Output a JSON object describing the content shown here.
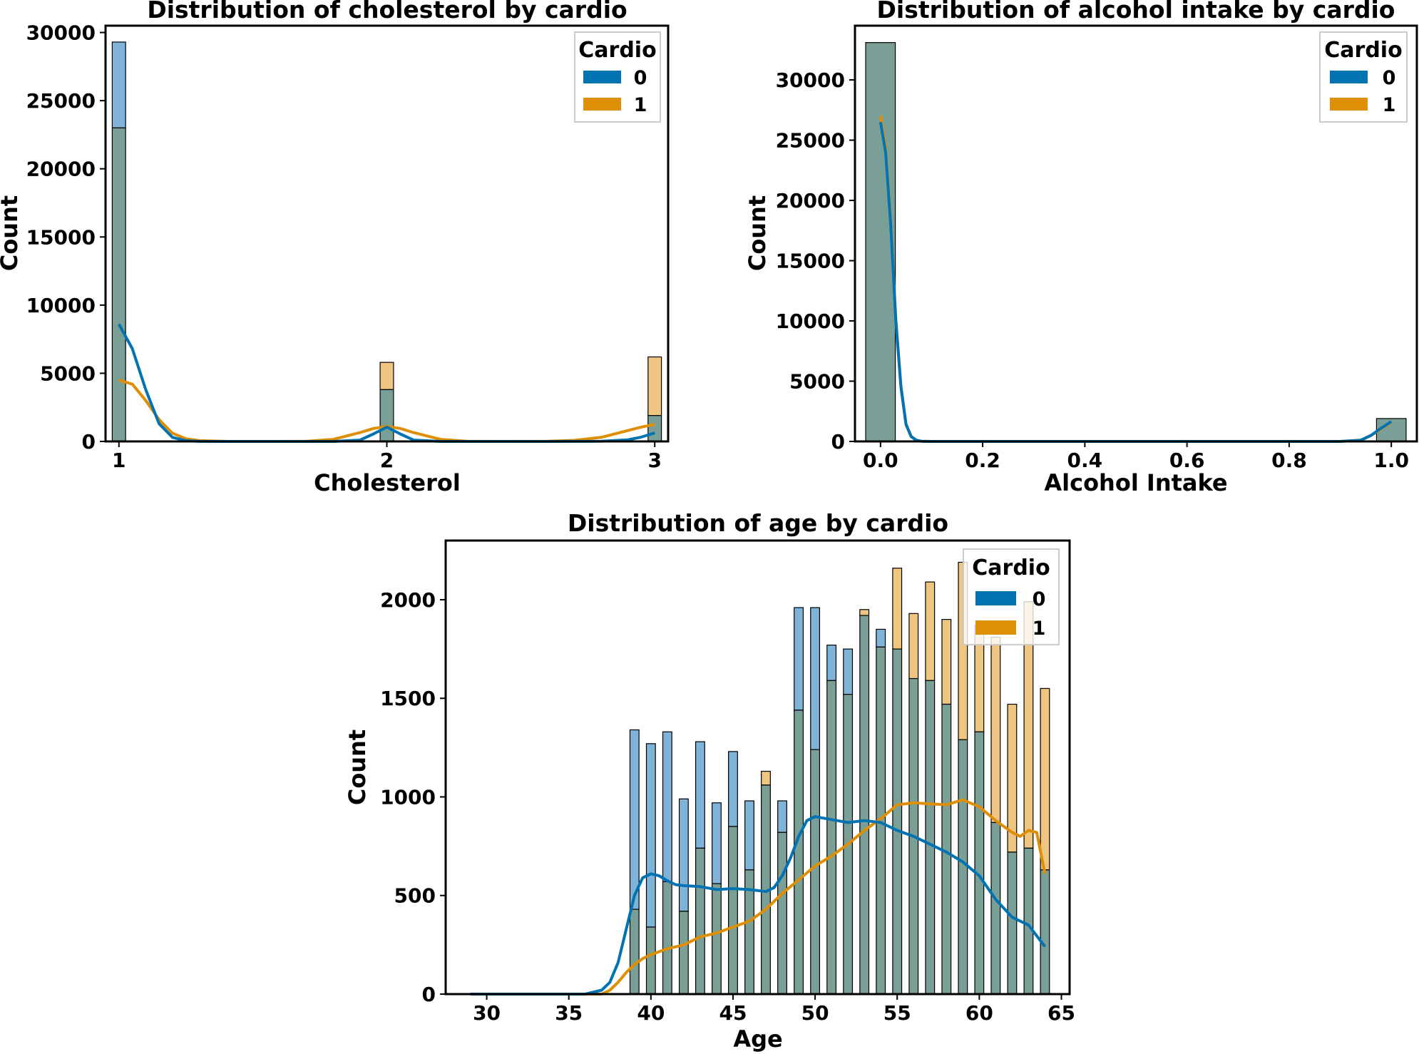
{
  "colors": {
    "class0": "#0173b2",
    "class1": "#de8f05",
    "class0_bar": "#7fb3d8",
    "class1_bar": "#eec682",
    "overlap": "#7a9f96"
  },
  "chart_data": [
    {
      "id": "cholesterol",
      "type": "bar",
      "title": "Distribution of cholesterol by cardio",
      "xlabel": "Cholesterol",
      "ylabel": "Count",
      "xlim": [
        0.95,
        3.05
      ],
      "ylim": [
        0,
        30500
      ],
      "xticks": [
        1,
        2,
        3
      ],
      "xtick_labels": [
        "1",
        "2",
        "3"
      ],
      "yticks": [
        0,
        5000,
        10000,
        15000,
        20000,
        25000,
        30000
      ],
      "ytick_labels": [
        "0",
        "5000",
        "10000",
        "15000",
        "20000",
        "25000",
        "30000"
      ],
      "bar_width": 0.05,
      "categories": [
        1,
        2,
        3
      ],
      "series": [
        {
          "name": "0",
          "values": [
            29300,
            3800,
            1900
          ]
        },
        {
          "name": "1",
          "values": [
            23000,
            5800,
            6200
          ]
        }
      ],
      "kde": [
        {
          "name": "0",
          "x": [
            1.0,
            1.05,
            1.1,
            1.15,
            1.2,
            1.25,
            1.3,
            1.4,
            1.6,
            1.8,
            1.9,
            1.95,
            2.0,
            2.05,
            2.1,
            2.2,
            2.4,
            2.6,
            2.8,
            2.9,
            2.95,
            3.0
          ],
          "y": [
            8600,
            6800,
            3800,
            1300,
            300,
            50,
            5,
            0,
            0,
            0,
            100,
            550,
            1050,
            550,
            100,
            0,
            0,
            0,
            10,
            120,
            320,
            620
          ]
        },
        {
          "name": "1",
          "x": [
            1.0,
            1.05,
            1.1,
            1.15,
            1.2,
            1.25,
            1.3,
            1.4,
            1.6,
            1.7,
            1.8,
            1.9,
            1.95,
            2.0,
            2.05,
            2.1,
            2.2,
            2.3,
            2.4,
            2.6,
            2.7,
            2.8,
            2.9,
            2.95,
            3.0
          ],
          "y": [
            4500,
            4200,
            3000,
            1600,
            600,
            200,
            60,
            5,
            0,
            10,
            150,
            650,
            950,
            1100,
            950,
            650,
            150,
            10,
            0,
            10,
            80,
            300,
            800,
            1050,
            1250
          ]
        }
      ],
      "legend": {
        "title": "Cardio",
        "labels": [
          "0",
          "1"
        ],
        "position": "upper right"
      }
    },
    {
      "id": "alcohol",
      "type": "bar",
      "title": "Distribution of alcohol intake by cardio",
      "xlabel": "Alcohol Intake",
      "ylabel": "Count",
      "xlim": [
        -0.05,
        1.05
      ],
      "ylim": [
        0,
        34500
      ],
      "xticks": [
        0.0,
        0.2,
        0.4,
        0.6,
        0.8,
        1.0
      ],
      "xtick_labels": [
        "0.0",
        "0.2",
        "0.4",
        "0.6",
        "0.8",
        "1.0"
      ],
      "yticks": [
        0,
        5000,
        10000,
        15000,
        20000,
        25000,
        30000
      ],
      "ytick_labels": [
        "0",
        "5000",
        "10000",
        "15000",
        "20000",
        "25000",
        "30000"
      ],
      "bar_width": 0.058,
      "categories": [
        0.0,
        1.0
      ],
      "series": [
        {
          "name": "0",
          "values": [
            33100,
            1900
          ]
        },
        {
          "name": "1",
          "values": [
            33100,
            1900
          ]
        }
      ],
      "kde": [
        {
          "name": "0",
          "x": [
            0.0,
            0.01,
            0.02,
            0.03,
            0.04,
            0.05,
            0.06,
            0.07,
            0.08,
            0.1,
            0.2,
            0.5,
            0.9,
            0.94,
            0.96,
            0.98,
            1.0
          ],
          "y": [
            26500,
            24000,
            18000,
            10000,
            4500,
            1400,
            400,
            100,
            20,
            0,
            0,
            0,
            0,
            100,
            500,
            1100,
            1650
          ]
        },
        {
          "name": "1",
          "x": [
            0.0,
            0.01,
            0.02,
            0.03,
            0.04,
            0.05,
            0.06,
            0.07,
            0.08,
            0.1,
            0.2,
            0.5,
            0.9,
            0.94,
            0.96,
            0.98,
            1.0
          ],
          "y": [
            27000,
            24400,
            18300,
            10200,
            4600,
            1450,
            420,
            110,
            20,
            0,
            0,
            0,
            0,
            100,
            480,
            1050,
            1600
          ]
        }
      ],
      "legend": {
        "title": "Cardio",
        "labels": [
          "0",
          "1"
        ],
        "position": "upper right"
      }
    },
    {
      "id": "age",
      "type": "bar",
      "title": "Distribution of age by cardio",
      "xlabel": "Age",
      "ylabel": "Count",
      "xlim": [
        27.5,
        65.5
      ],
      "ylim": [
        0,
        2300
      ],
      "xticks": [
        30,
        35,
        40,
        45,
        50,
        55,
        60,
        65
      ],
      "xtick_labels": [
        "30",
        "35",
        "40",
        "45",
        "50",
        "55",
        "60",
        "65"
      ],
      "yticks": [
        0,
        500,
        1000,
        1500,
        2000
      ],
      "ytick_labels": [
        "0",
        "500",
        "1000",
        "1500",
        "2000"
      ],
      "bar_width": 0.55,
      "categories": [
        39,
        40,
        41,
        42,
        43,
        44,
        45,
        46,
        47,
        48,
        49,
        50,
        51,
        52,
        53,
        54,
        55,
        56,
        57,
        58,
        59,
        60,
        61,
        62,
        63,
        64
      ],
      "series": [
        {
          "name": "0",
          "values": [
            1340,
            1270,
            1330,
            990,
            1280,
            970,
            1230,
            980,
            1060,
            980,
            1960,
            1960,
            1770,
            1750,
            1920,
            1850,
            1750,
            1600,
            1590,
            1470,
            1290,
            1330,
            870,
            720,
            740,
            630
          ]
        },
        {
          "name": "1",
          "values": [
            430,
            340,
            570,
            420,
            740,
            560,
            850,
            630,
            1130,
            820,
            1440,
            1240,
            1590,
            1520,
            1950,
            1760,
            2160,
            1930,
            2090,
            1900,
            2190,
            1870,
            1810,
            1470,
            1990,
            1550
          ]
        }
      ],
      "kde": [
        {
          "name": "0",
          "x": [
            29,
            36,
            37,
            37.5,
            38,
            38.5,
            39,
            39.5,
            40,
            40.5,
            41,
            41.5,
            42,
            43,
            44,
            45,
            46,
            47,
            47.5,
            48,
            48.5,
            49,
            49.5,
            50,
            51,
            52,
            53,
            54,
            55,
            56,
            57,
            58,
            59,
            60,
            61,
            62,
            63,
            64
          ],
          "y": [
            0,
            0,
            20,
            60,
            160,
            330,
            500,
            590,
            610,
            600,
            575,
            555,
            550,
            545,
            530,
            535,
            530,
            520,
            540,
            600,
            690,
            800,
            880,
            900,
            885,
            870,
            880,
            870,
            830,
            800,
            760,
            720,
            670,
            600,
            480,
            390,
            350,
            240
          ]
        },
        {
          "name": "1",
          "x": [
            29,
            37,
            37.5,
            38,
            38.5,
            39,
            39.5,
            40,
            41,
            42,
            43,
            44,
            45,
            46,
            47,
            48,
            49,
            50,
            51,
            52,
            53,
            54,
            55,
            56,
            57,
            58,
            59,
            60,
            61,
            62,
            62.5,
            63,
            63.5,
            64
          ],
          "y": [
            0,
            0,
            20,
            60,
            110,
            150,
            180,
            200,
            230,
            250,
            290,
            310,
            340,
            370,
            430,
            510,
            580,
            650,
            700,
            760,
            830,
            890,
            960,
            970,
            965,
            960,
            985,
            950,
            880,
            820,
            800,
            830,
            820,
            610
          ]
        }
      ],
      "legend": {
        "title": "Cardio",
        "labels": [
          "0",
          "1"
        ],
        "position": "upper right"
      }
    }
  ]
}
